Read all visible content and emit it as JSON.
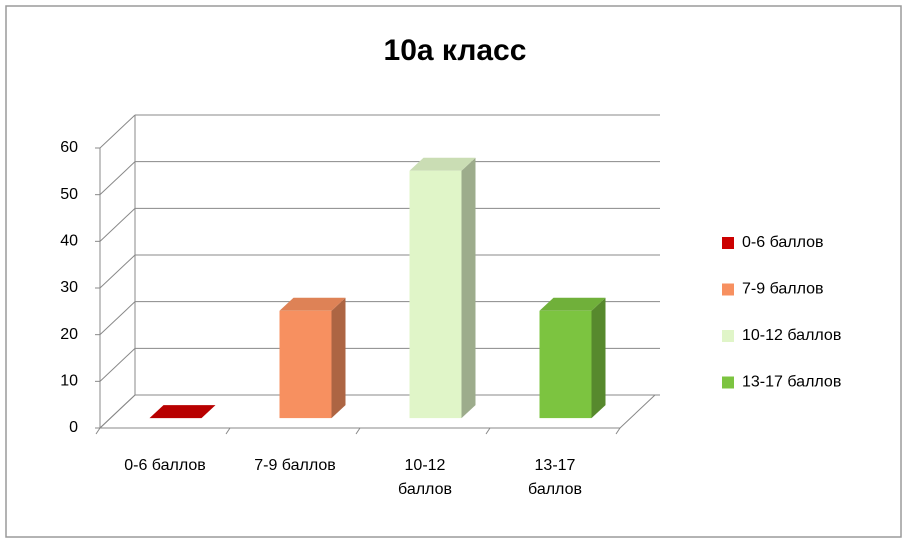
{
  "chart_data": {
    "type": "bar3d",
    "title": "10а класс",
    "categories": [
      "0-6 баллов",
      "7-9 баллов",
      "10-12 баллов",
      "13-17 баллов"
    ],
    "values": [
      0,
      23,
      53,
      23
    ],
    "colors": [
      "#cc0000",
      "#f79060",
      "#e0f5c8",
      "#7cc440"
    ],
    "ylim": [
      0,
      60
    ],
    "yticks": [
      0,
      10,
      20,
      30,
      40,
      50,
      60
    ],
    "grid": true,
    "legend": "right"
  }
}
